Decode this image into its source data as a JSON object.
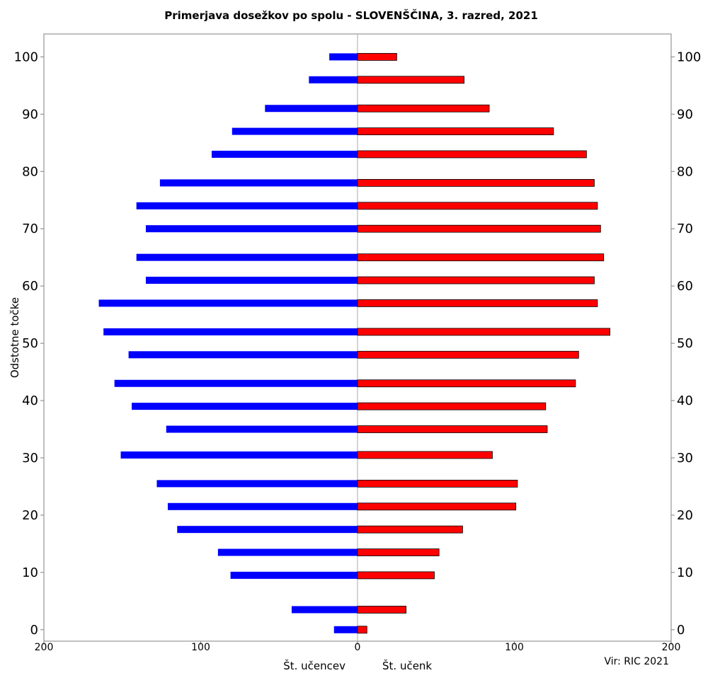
{
  "chart_data": {
    "type": "bar",
    "orientation": "horizontal-butterfly",
    "title": "Primerjava dosežkov po spolu - SLOVENŠČINA, 3. razred, 2021",
    "ylabel": "Odstotne točke",
    "xlabel_left": "Št. učencev",
    "xlabel_right": "Št. učenk",
    "source": "Vir: RIC 2021",
    "ylim": [
      -2,
      104
    ],
    "xlim": [
      -200,
      200
    ],
    "grid": false,
    "y_ticks": [
      "0",
      "10",
      "20",
      "30",
      "40",
      "50",
      "60",
      "70",
      "80",
      "90",
      "100"
    ],
    "x_ticks": [
      "200",
      "100",
      "0",
      "100",
      "200"
    ],
    "colors": {
      "boys": "#0000ff",
      "girls": "#ff0000"
    },
    "series": [
      {
        "side": "left",
        "y": [
          0,
          3.5,
          9.5,
          13.5,
          17.5,
          21.5,
          25.5,
          30.5,
          35,
          39,
          43,
          48,
          52,
          57,
          61,
          65,
          70,
          74,
          78,
          83,
          87,
          91,
          96,
          100
        ],
        "values": [
          15,
          42,
          81,
          89,
          115,
          121,
          128,
          151,
          122,
          144,
          155,
          146,
          162,
          165,
          135,
          141,
          135,
          141,
          126,
          93,
          80,
          59,
          31,
          18
        ]
      },
      {
        "side": "right",
        "y": [
          0,
          3.5,
          9.5,
          13.5,
          17.5,
          21.5,
          25.5,
          30.5,
          35,
          39,
          43,
          48,
          52,
          57,
          61,
          65,
          70,
          74,
          78,
          83,
          87,
          91,
          96,
          100
        ],
        "values": [
          6,
          31,
          49,
          52,
          67,
          101,
          102,
          86,
          121,
          120,
          139,
          141,
          161,
          153,
          151,
          157,
          155,
          153,
          151,
          146,
          125,
          84,
          68,
          25
        ]
      }
    ]
  }
}
